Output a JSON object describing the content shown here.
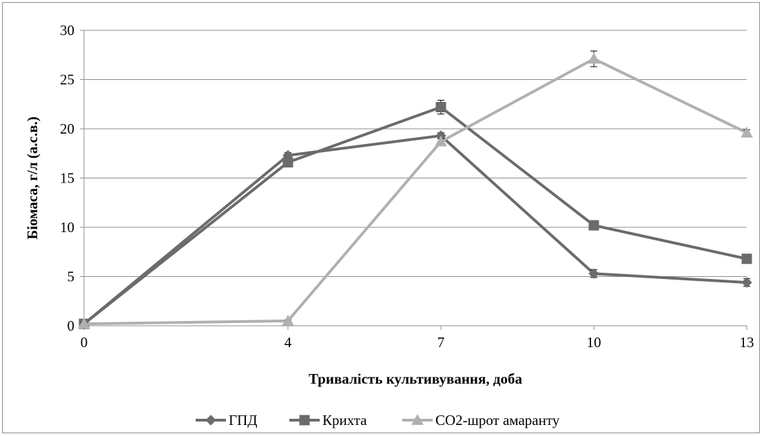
{
  "chart_data": {
    "type": "line",
    "x": [
      0,
      4,
      7,
      10,
      13
    ],
    "xticks": [
      "0",
      "4",
      "7",
      "10",
      "13"
    ],
    "yticks": [
      "0",
      "5",
      "10",
      "15",
      "20",
      "25",
      "30"
    ],
    "ylim": [
      0,
      30
    ],
    "xlabel": "Тривалість культивування, доба",
    "ylabel": "Біомаса, г/л  (а.с.в.)",
    "grid": true,
    "legend_position": "bottom",
    "series": [
      {
        "name": "ГПД",
        "marker": "diamond",
        "color": "#6b6b6b",
        "values": [
          0.2,
          17.3,
          19.3,
          5.3,
          4.4
        ],
        "errors": [
          0.1,
          0.3,
          0.3,
          0.4,
          0.4
        ]
      },
      {
        "name": "Крихта",
        "marker": "square",
        "color": "#6b6b6b",
        "values": [
          0.2,
          16.6,
          22.2,
          10.2,
          6.8
        ],
        "errors": [
          0.1,
          0.3,
          0.7,
          0.3,
          0.2
        ]
      },
      {
        "name": "СО2-шрот амаранту",
        "marker": "triangle",
        "color": "#b0b0b0",
        "values": [
          0.2,
          0.5,
          18.7,
          27.1,
          19.6
        ],
        "errors": [
          0.1,
          0.1,
          0.3,
          0.8,
          0.3
        ]
      }
    ]
  }
}
